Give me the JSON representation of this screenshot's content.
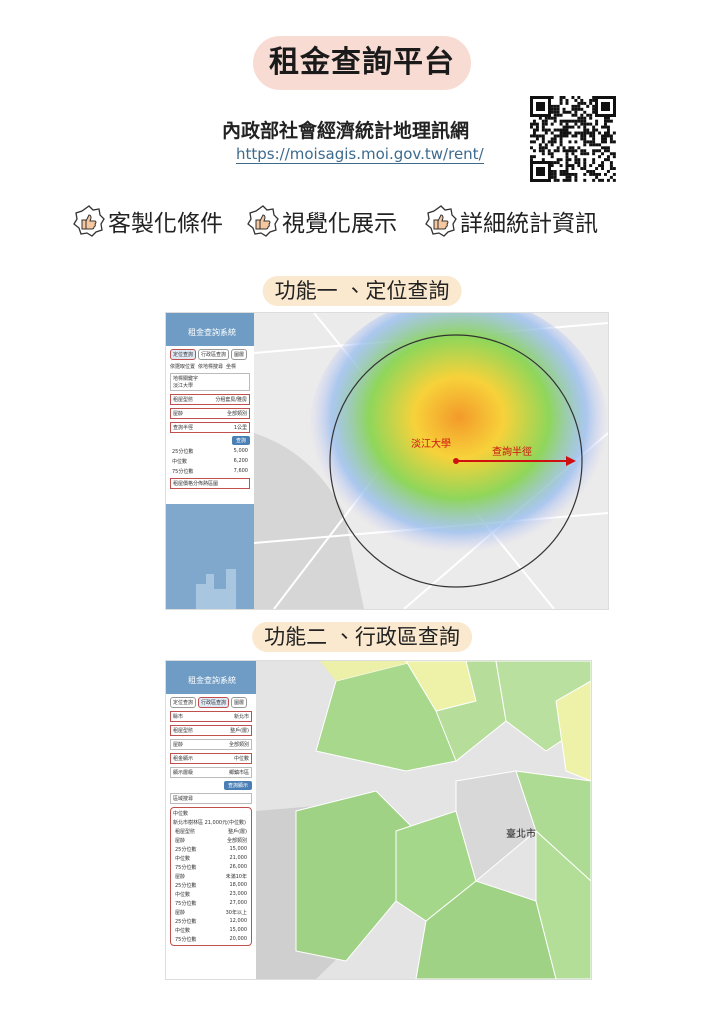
{
  "header": {
    "title": "租金查詢平台",
    "org": "內政部社會經濟統計地理訊網",
    "url": "https://moisagis.moi.gov.tw/rent/"
  },
  "features": [
    "客製化條件",
    "視覺化展示",
    "詳細統計資訊"
  ],
  "sections": [
    {
      "title": "功能一 、定位查詢",
      "app_title": "租金查詢系統",
      "tabs": [
        "定位查詢",
        "行政區查詢",
        "圖層"
      ],
      "modes": [
        "依選取位置",
        "依地標搜尋",
        "坐標"
      ],
      "search_label": "地標關鍵字",
      "search_value": "淡江大學",
      "rows": [
        [
          "租屋型態",
          "分租套房/雅房"
        ],
        [
          "屋齡",
          "全部類別"
        ],
        [
          "查詢半徑",
          "1公里"
        ]
      ],
      "query_button": "查詢",
      "stats": [
        [
          "25分位數",
          "5,000"
        ],
        [
          "中位數",
          "6,200"
        ],
        [
          "75分位數",
          "7,600"
        ]
      ],
      "checkbox": "租屋價格分佈熱區圖",
      "map_labels": [
        "淡江大學",
        "查詢半徑"
      ]
    },
    {
      "title": "功能二 、行政區查詢",
      "app_title": "租金查詢系統",
      "tabs": [
        "定位查詢",
        "行政區查詢",
        "圖層"
      ],
      "rows": [
        [
          "縣市",
          "新北市"
        ],
        [
          "租屋型態",
          "整戶(層)"
        ],
        [
          "屋齡",
          "全部類別"
        ],
        [
          "租金顯示",
          "中位數"
        ],
        [
          "顯示層級",
          "鄉鎮市區"
        ]
      ],
      "query_button": "查詢顯示",
      "search_label": "區域搜尋",
      "summary_title": "中位數",
      "summary": "新北市樹林區 21,000元(中位數)",
      "stats": [
        [
          "租屋型態",
          "整戶(層)"
        ],
        [
          "屋齡",
          "全部類別"
        ],
        [
          "25分位數",
          "15,000"
        ],
        [
          "中位數",
          "21,000"
        ],
        [
          "75分位數",
          "26,000"
        ],
        [
          "屋齡",
          "未滿10年"
        ],
        [
          "25分位數",
          "18,000"
        ],
        [
          "中位數",
          "23,000"
        ],
        [
          "75分位數",
          "27,000"
        ],
        [
          "屋齡",
          "30年以上"
        ],
        [
          "25分位數",
          "12,000"
        ],
        [
          "中位數",
          "15,000"
        ],
        [
          "75分位數",
          "20,000"
        ]
      ],
      "map_labels": [
        "臺北市"
      ]
    }
  ]
}
